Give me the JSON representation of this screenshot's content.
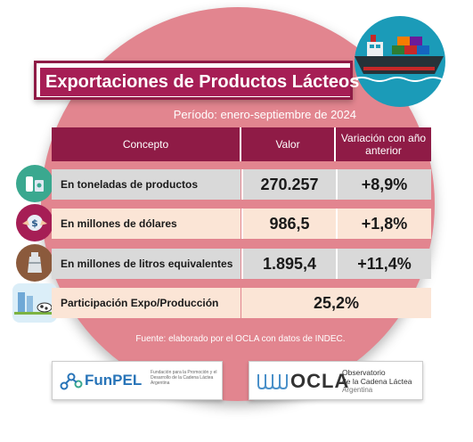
{
  "title": "Exportaciones de Productos Lácteos",
  "period": "Período: enero-septiembre de 2024",
  "table": {
    "headers": [
      "Concepto",
      "Valor",
      "Variación con año anterior"
    ],
    "rows": [
      {
        "concept": "En toneladas de productos",
        "value": "270.257",
        "variation": "+8,9%",
        "icon": "dairy-products-icon"
      },
      {
        "concept": "En millones de dólares",
        "value": "986,5",
        "variation": "+1,8%",
        "icon": "handshake-money-icon"
      },
      {
        "concept": "En millones de litros equivalentes",
        "value": "1.895,4",
        "variation": "+11,4%",
        "icon": "milk-can-icon"
      }
    ],
    "participation": {
      "concept": "Participación Expo/Producción",
      "value": "25,2%",
      "icon": "dairy-farm-icon"
    }
  },
  "source": "Fuente: elaborado por el OCLA con datos de INDEC.",
  "logos": {
    "funpel": {
      "name": "FunPEL",
      "subtitle": "Fundación para la Promoción y el Desarrollo de la Cadena Láctea Argentina"
    },
    "ocla": {
      "name": "OCLA",
      "subtitle_line1": "Observatorio",
      "subtitle_line2": "de la Cadena Láctea",
      "subtitle_line3": "Argentina"
    }
  },
  "colors": {
    "accent": "#a61e55",
    "header": "#8f1b46",
    "circle": "#e2858f",
    "ship_bg": "#1b9bb8"
  }
}
